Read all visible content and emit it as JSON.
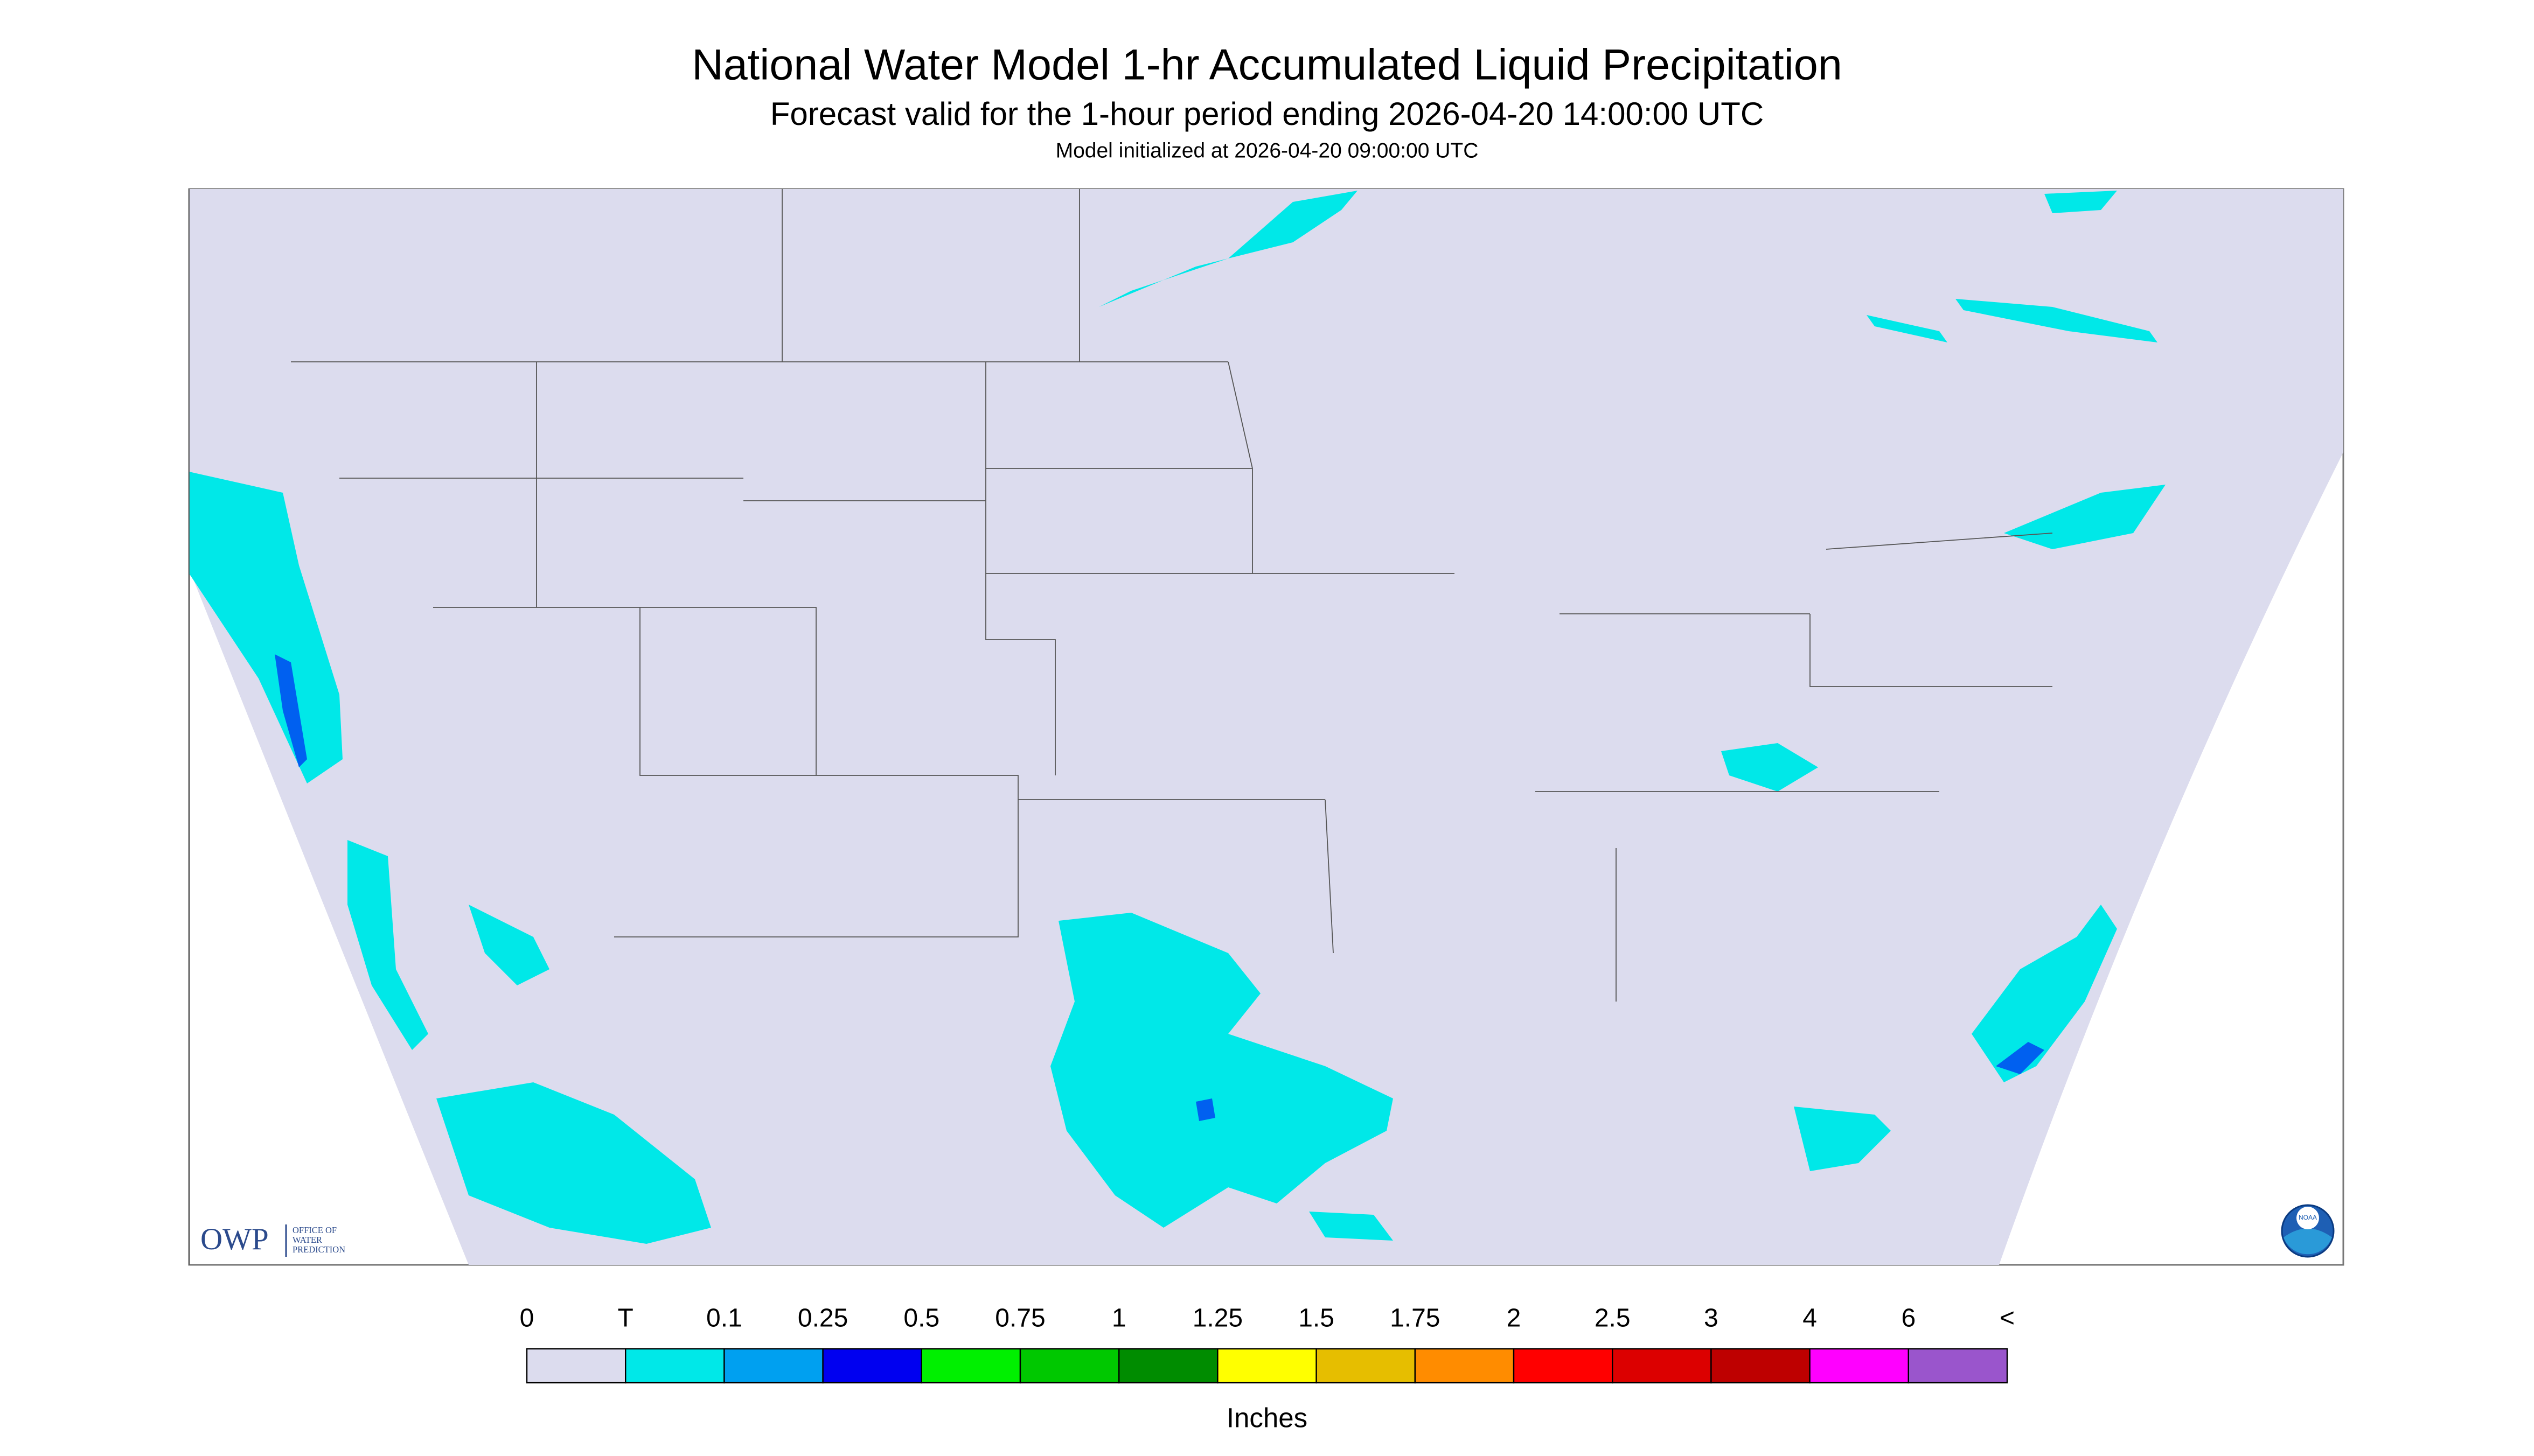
{
  "header": {
    "title": "National Water Model 1-hr Accumulated Liquid Precipitation",
    "subtitle": "Forecast valid for the 1-hour period ending 2026-04-20 14:00:00 UTC",
    "init": "Model initialized at 2026-04-20 09:00:00 UTC"
  },
  "legend": {
    "labels": [
      "0",
      "T",
      "0.1",
      "0.25",
      "0.5",
      "0.75",
      "1",
      "1.25",
      "1.5",
      "1.75",
      "2",
      "2.5",
      "3",
      "4",
      "6",
      "<"
    ],
    "colors": [
      "#dcdcee",
      "#00e8e8",
      "#00a0f0",
      "#0000f0",
      "#00f000",
      "#00c800",
      "#008c00",
      "#ffff00",
      "#e6be00",
      "#ff8c00",
      "#ff0000",
      "#dc0000",
      "#be0000",
      "#ff00ff",
      "#9a55cc"
    ],
    "unit": "Inches"
  },
  "logos": {
    "owp": "OWP",
    "owp_lines": [
      "OFFICE OF",
      "WATER",
      "PREDICTION"
    ],
    "noaa": "NOAA"
  }
}
